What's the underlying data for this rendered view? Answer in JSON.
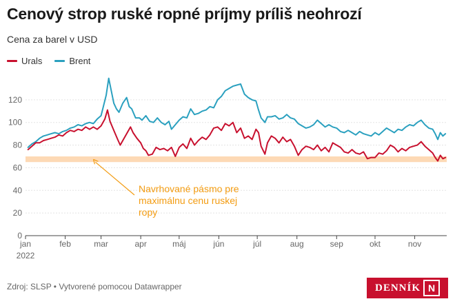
{
  "title": "Cenový strop ruské ropné príjmy príliš neohrozí",
  "subtitle": "Cena za barel v USD",
  "footer": "Zdroj: SLSP • Vytvorené pomocou Datawrapper",
  "logo": {
    "text": "DENNÍK",
    "mark": "N"
  },
  "colors": {
    "urals": "#c8102e",
    "brent": "#2aa0bf",
    "band": "#fdd9b5",
    "annotation": "#f39c12",
    "logo_bg": "#c8102e"
  },
  "chart_data": {
    "type": "line",
    "title": "Cenový strop ruské ropné príjmy príliš neohrozí",
    "ylabel": "Cena za barel v USD",
    "ylim": [
      0,
      140
    ],
    "yticks": [
      0,
      20,
      40,
      60,
      80,
      100,
      120
    ],
    "xlim": [
      1,
      330
    ],
    "xticks": [
      {
        "x": 1,
        "label": "jan",
        "sub": "2022"
      },
      {
        "x": 32,
        "label": "feb"
      },
      {
        "x": 60,
        "label": "mar"
      },
      {
        "x": 91,
        "label": "apr"
      },
      {
        "x": 121,
        "label": "máj"
      },
      {
        "x": 152,
        "label": "jún"
      },
      {
        "x": 182,
        "label": "júl"
      },
      {
        "x": 213,
        "label": "aug"
      },
      {
        "x": 244,
        "label": "sep"
      },
      {
        "x": 274,
        "label": "okt"
      },
      {
        "x": 305,
        "label": "nov"
      }
    ],
    "grid": true,
    "legend_position": "top-left",
    "band": {
      "y_from": 65,
      "y_to": 70
    },
    "annotation": {
      "lines": [
        "Navrhované pásmo pre",
        "maximálnu cenu ruskej",
        "ropy"
      ],
      "arrow_to": {
        "x": 54,
        "y": 68
      }
    },
    "series": [
      {
        "name": "Urals",
        "color": "#c8102e",
        "points": [
          [
            3,
            76
          ],
          [
            6,
            79
          ],
          [
            9,
            82
          ],
          [
            12,
            82
          ],
          [
            15,
            84
          ],
          [
            18,
            85
          ],
          [
            21,
            86
          ],
          [
            24,
            87
          ],
          [
            27,
            89
          ],
          [
            30,
            88
          ],
          [
            33,
            91
          ],
          [
            36,
            93
          ],
          [
            39,
            92
          ],
          [
            42,
            94
          ],
          [
            45,
            93
          ],
          [
            48,
            96
          ],
          [
            51,
            94
          ],
          [
            54,
            96
          ],
          [
            57,
            94
          ],
          [
            60,
            97
          ],
          [
            63,
            103
          ],
          [
            65,
            111
          ],
          [
            67,
            101
          ],
          [
            70,
            93
          ],
          [
            73,
            85
          ],
          [
            75,
            80
          ],
          [
            77,
            84
          ],
          [
            80,
            90
          ],
          [
            83,
            96
          ],
          [
            85,
            91
          ],
          [
            88,
            86
          ],
          [
            91,
            82
          ],
          [
            93,
            77
          ],
          [
            95,
            75
          ],
          [
            97,
            71
          ],
          [
            100,
            72
          ],
          [
            103,
            78
          ],
          [
            106,
            76
          ],
          [
            109,
            77
          ],
          [
            112,
            75
          ],
          [
            115,
            78
          ],
          [
            118,
            70
          ],
          [
            121,
            78
          ],
          [
            124,
            81
          ],
          [
            127,
            77
          ],
          [
            130,
            86
          ],
          [
            133,
            80
          ],
          [
            136,
            84
          ],
          [
            139,
            87
          ],
          [
            142,
            85
          ],
          [
            145,
            89
          ],
          [
            148,
            95
          ],
          [
            151,
            96
          ],
          [
            154,
            93
          ],
          [
            157,
            99
          ],
          [
            160,
            97
          ],
          [
            163,
            100
          ],
          [
            166,
            91
          ],
          [
            169,
            95
          ],
          [
            172,
            86
          ],
          [
            175,
            88
          ],
          [
            178,
            85
          ],
          [
            181,
            94
          ],
          [
            183,
            91
          ],
          [
            185,
            79
          ],
          [
            188,
            72
          ],
          [
            190,
            82
          ],
          [
            193,
            88
          ],
          [
            196,
            86
          ],
          [
            199,
            82
          ],
          [
            202,
            87
          ],
          [
            205,
            83
          ],
          [
            208,
            85
          ],
          [
            211,
            79
          ],
          [
            214,
            71
          ],
          [
            217,
            76
          ],
          [
            220,
            79
          ],
          [
            223,
            78
          ],
          [
            226,
            76
          ],
          [
            229,
            80
          ],
          [
            232,
            75
          ],
          [
            235,
            78
          ],
          [
            238,
            74
          ],
          [
            241,
            82
          ],
          [
            244,
            80
          ],
          [
            247,
            78
          ],
          [
            250,
            74
          ],
          [
            253,
            73
          ],
          [
            256,
            76
          ],
          [
            259,
            73
          ],
          [
            262,
            72
          ],
          [
            265,
            74
          ],
          [
            268,
            68
          ],
          [
            271,
            69
          ],
          [
            274,
            69
          ],
          [
            277,
            73
          ],
          [
            280,
            72
          ],
          [
            283,
            75
          ],
          [
            286,
            80
          ],
          [
            289,
            78
          ],
          [
            292,
            74
          ],
          [
            295,
            77
          ],
          [
            298,
            75
          ],
          [
            301,
            78
          ],
          [
            304,
            79
          ],
          [
            307,
            80
          ],
          [
            310,
            83
          ],
          [
            313,
            79
          ],
          [
            316,
            76
          ],
          [
            319,
            73
          ],
          [
            321,
            69
          ],
          [
            323,
            66
          ],
          [
            325,
            71
          ],
          [
            327,
            68
          ],
          [
            329,
            69
          ]
        ]
      },
      {
        "name": "Brent",
        "color": "#2aa0bf",
        "points": [
          [
            3,
            78
          ],
          [
            6,
            81
          ],
          [
            9,
            83
          ],
          [
            12,
            86
          ],
          [
            15,
            88
          ],
          [
            18,
            89
          ],
          [
            21,
            90
          ],
          [
            24,
            91
          ],
          [
            27,
            90
          ],
          [
            30,
            92
          ],
          [
            33,
            93
          ],
          [
            36,
            95
          ],
          [
            39,
            96
          ],
          [
            42,
            98
          ],
          [
            45,
            97
          ],
          [
            48,
            99
          ],
          [
            51,
            100
          ],
          [
            54,
            99
          ],
          [
            57,
            103
          ],
          [
            60,
            106
          ],
          [
            62,
            115
          ],
          [
            64,
            124
          ],
          [
            66,
            139
          ],
          [
            68,
            128
          ],
          [
            70,
            117
          ],
          [
            72,
            112
          ],
          [
            74,
            109
          ],
          [
            77,
            117
          ],
          [
            80,
            122
          ],
          [
            82,
            114
          ],
          [
            84,
            112
          ],
          [
            87,
            104
          ],
          [
            90,
            104
          ],
          [
            92,
            102
          ],
          [
            95,
            106
          ],
          [
            98,
            101
          ],
          [
            101,
            100
          ],
          [
            104,
            104
          ],
          [
            107,
            100
          ],
          [
            110,
            98
          ],
          [
            113,
            101
          ],
          [
            115,
            94
          ],
          [
            118,
            98
          ],
          [
            121,
            102
          ],
          [
            124,
            105
          ],
          [
            127,
            104
          ],
          [
            130,
            112
          ],
          [
            133,
            107
          ],
          [
            136,
            108
          ],
          [
            139,
            110
          ],
          [
            142,
            111
          ],
          [
            145,
            114
          ],
          [
            148,
            113
          ],
          [
            151,
            120
          ],
          [
            154,
            123
          ],
          [
            157,
            128
          ],
          [
            160,
            130
          ],
          [
            163,
            132
          ],
          [
            166,
            133
          ],
          [
            169,
            134
          ],
          [
            172,
            125
          ],
          [
            175,
            122
          ],
          [
            178,
            120
          ],
          [
            181,
            119
          ],
          [
            183,
            111
          ],
          [
            185,
            104
          ],
          [
            188,
            100
          ],
          [
            190,
            105
          ],
          [
            193,
            105
          ],
          [
            196,
            106
          ],
          [
            199,
            103
          ],
          [
            202,
            104
          ],
          [
            205,
            107
          ],
          [
            208,
            104
          ],
          [
            211,
            103
          ],
          [
            214,
            99
          ],
          [
            217,
            97
          ],
          [
            220,
            95
          ],
          [
            223,
            96
          ],
          [
            226,
            98
          ],
          [
            229,
            102
          ],
          [
            232,
            99
          ],
          [
            235,
            96
          ],
          [
            238,
            98
          ],
          [
            241,
            96
          ],
          [
            244,
            95
          ],
          [
            247,
            92
          ],
          [
            250,
            91
          ],
          [
            253,
            93
          ],
          [
            256,
            91
          ],
          [
            259,
            89
          ],
          [
            262,
            92
          ],
          [
            265,
            90
          ],
          [
            268,
            89
          ],
          [
            271,
            88
          ],
          [
            274,
            91
          ],
          [
            277,
            89
          ],
          [
            280,
            92
          ],
          [
            283,
            95
          ],
          [
            286,
            93
          ],
          [
            289,
            91
          ],
          [
            292,
            94
          ],
          [
            295,
            93
          ],
          [
            298,
            96
          ],
          [
            301,
            98
          ],
          [
            304,
            97
          ],
          [
            307,
            100
          ],
          [
            310,
            102
          ],
          [
            313,
            98
          ],
          [
            316,
            95
          ],
          [
            319,
            94
          ],
          [
            321,
            90
          ],
          [
            323,
            85
          ],
          [
            325,
            91
          ],
          [
            327,
            88
          ],
          [
            329,
            90
          ]
        ]
      }
    ]
  }
}
